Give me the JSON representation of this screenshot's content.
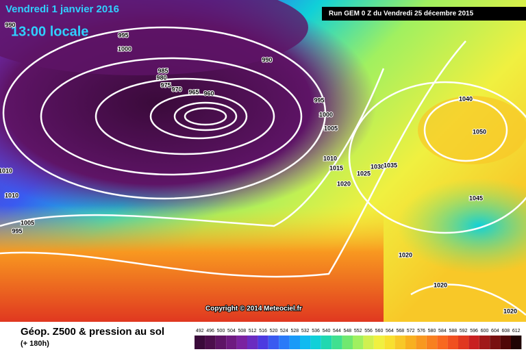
{
  "header": {
    "date": "Vendredi 1 janvier 2016",
    "time": "13:00 locale",
    "run": "Run GEM 0 Z du Vendredi 25 décembre 2015"
  },
  "map": {
    "isobar_labels": [
      "990",
      "995",
      "1000",
      "985",
      "980",
      "975",
      "970",
      "965",
      "960",
      "990",
      "995",
      "1000",
      "1005",
      "1010",
      "1015",
      "1020",
      "1025",
      "1030",
      "1035",
      "1040",
      "1050",
      "1045",
      "1020",
      "1020",
      "1020",
      "1010",
      "1010",
      "1005",
      "995"
    ],
    "copyright": "Copyright © 2014 Meteociel.fr"
  },
  "footer": {
    "title": "Géop. Z500 & pression au sol",
    "subtitle": "(+ 180h)",
    "scale": [
      492,
      496,
      500,
      504,
      508,
      512,
      516,
      520,
      524,
      528,
      532,
      536,
      540,
      544,
      548,
      552,
      556,
      560,
      564,
      568,
      572,
      576,
      580,
      584,
      588,
      592,
      596,
      600,
      604,
      608,
      612
    ],
    "scale_colors": [
      "#3a0a3a",
      "#4c0e4c",
      "#5e1466",
      "#6e1a80",
      "#7a22a0",
      "#6a2cc0",
      "#4c3ae0",
      "#3a5af0",
      "#2a7af8",
      "#1a9af8",
      "#10baf0",
      "#10d0d8",
      "#20d8b0",
      "#40e090",
      "#70e870",
      "#a0f060",
      "#d0f050",
      "#f0f040",
      "#f8e030",
      "#f8c828",
      "#f8b020",
      "#f89820",
      "#f88020",
      "#f86820",
      "#f05020",
      "#e03820",
      "#c82020",
      "#a01818",
      "#781010",
      "#500808",
      "#200404"
    ]
  }
}
